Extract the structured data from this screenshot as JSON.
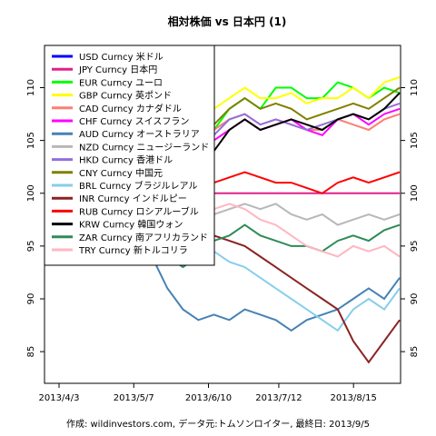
{
  "chart_data": {
    "type": "line",
    "title": "相対株価 vs 日本円 (1)",
    "footer": "作成: wildinvestors.com, データ元:トムソンロイター, 最終日: 2013/9/5",
    "xlabel": "",
    "ylabel": "",
    "x_ticks": [
      "2013/4/3",
      "2013/5/7",
      "2013/6/10",
      "2013/7/12",
      "2013/8/15"
    ],
    "x_tick_days": [
      0,
      34,
      68,
      100,
      134
    ],
    "x_end_day": 155,
    "ylim": [
      82,
      114
    ],
    "y_ticks": [
      85,
      90,
      95,
      100,
      105,
      110
    ],
    "legend_position": "top-left",
    "series": [
      {
        "name": "USD Curncy 米ドル",
        "color": "#0000ff",
        "values": []
      },
      {
        "name": "JPY Curncy 日本円",
        "color": "#e0218a",
        "values": [
          100,
          100
        ]
      },
      {
        "name": "EUR Curncy ユーロ",
        "color": "#00ff00",
        "values": [
          100,
          103,
          106,
          109,
          111,
          109,
          107,
          103.5,
          102,
          104,
          106,
          108,
          109,
          108,
          110,
          110,
          109,
          109,
          110.5,
          110,
          109,
          110,
          109.5
        ]
      },
      {
        "name": "GBP Curncy 英ポンド",
        "color": "#ffff00",
        "values": [
          100,
          103,
          107,
          110,
          112,
          110,
          108,
          104,
          103,
          106,
          108,
          109,
          110,
          109,
          109,
          109.5,
          108.5,
          109,
          109,
          110,
          109,
          110.5,
          111
        ]
      },
      {
        "name": "CAD Curncy カナダドル",
        "color": "#fa8072",
        "values": [
          100,
          102,
          105,
          108,
          110,
          108,
          105,
          103,
          102,
          104,
          106,
          107,
          107.5,
          106.5,
          107,
          106.5,
          106,
          106,
          107,
          106.5,
          106,
          107,
          107.5
        ]
      },
      {
        "name": "CHF Curncy スイスフラン",
        "color": "#ff00ff",
        "values": [
          100,
          102,
          105,
          107,
          109,
          107,
          105,
          103,
          103,
          104,
          105,
          106,
          107,
          106,
          106.5,
          107,
          106,
          105.5,
          107,
          107.5,
          106.5,
          107.5,
          108
        ]
      },
      {
        "name": "AUD Curncy オーストラリア",
        "color": "#4682b4",
        "values": [
          100,
          102,
          104,
          103,
          100,
          97,
          94,
          91,
          89,
          88,
          88.5,
          88,
          89,
          88.5,
          88,
          87,
          88,
          88.5,
          89,
          90,
          91,
          90,
          92
        ]
      },
      {
        "name": "NZD Curncy ニュージーランド",
        "color": "#b8b8b8",
        "values": [
          100,
          102,
          104,
          105,
          103,
          101,
          99,
          97,
          96,
          97,
          98,
          98.5,
          99,
          98.5,
          99,
          98,
          97.5,
          98,
          97,
          97.5,
          98,
          97.5,
          98
        ]
      },
      {
        "name": "HKD Curncy 香港ドル",
        "color": "#9370db",
        "values": [
          100,
          103,
          106,
          108,
          110,
          108,
          105,
          103,
          102,
          104,
          105.5,
          107,
          107.5,
          106.5,
          107,
          106.5,
          106,
          106.5,
          107,
          107.5,
          107,
          108,
          108.5
        ]
      },
      {
        "name": "CNY Curncy 中国元",
        "color": "#808000",
        "values": [
          100,
          103,
          106,
          109,
          111,
          109,
          106,
          103.5,
          103,
          105,
          106.5,
          108,
          109,
          108,
          108.5,
          108,
          107,
          107.5,
          108,
          108.5,
          108,
          109,
          110
        ]
      },
      {
        "name": "BRL Curncy ブラジルレアル",
        "color": "#87ceeb",
        "values": [
          100,
          102,
          104,
          105,
          103,
          100,
          98,
          96,
          95,
          95.5,
          94.5,
          93.5,
          93,
          92,
          91,
          90,
          89,
          88,
          87,
          89,
          90,
          89,
          91
        ]
      },
      {
        "name": "INR Curncy インドルピー",
        "color": "#8b2323",
        "values": [
          100,
          102,
          105,
          106,
          104,
          102,
          99,
          97,
          96,
          97,
          96,
          95.5,
          95,
          94,
          93,
          92,
          91,
          90,
          89,
          86,
          84,
          86,
          88
        ]
      },
      {
        "name": "RUB Curncy ロシアルーブル",
        "color": "#ff0000",
        "values": [
          100,
          102,
          104,
          105,
          104,
          103,
          101,
          99,
          99,
          100,
          101,
          101.5,
          102,
          101.5,
          101,
          101,
          100.5,
          100,
          101,
          101.5,
          101,
          101.5,
          102
        ]
      },
      {
        "name": "KRW Curncy 韓国ウォン",
        "color": "#000000",
        "values": [
          100,
          102,
          104,
          106,
          108,
          106,
          103,
          101,
          100.5,
          102,
          104,
          106,
          107,
          106,
          106.5,
          107,
          106.5,
          106,
          107,
          107.5,
          107,
          108,
          109.5
        ]
      },
      {
        "name": "ZAR Curncy 南アフリカランド",
        "color": "#2e8b57",
        "values": [
          100,
          101,
          102,
          101,
          99,
          97,
          95,
          94,
          93,
          94,
          95.5,
          96,
          97,
          96,
          95.5,
          95,
          95,
          94.5,
          95.5,
          96,
          95.5,
          96.5,
          97
        ]
      },
      {
        "name": "TRY Curncy 新トルコリラ",
        "color": "#ffb6c1",
        "values": [
          100,
          101,
          103,
          104,
          102,
          100,
          98,
          97,
          97,
          98,
          98.5,
          99,
          98.5,
          97.5,
          97,
          96,
          95,
          94.5,
          94,
          95,
          94.5,
          95,
          94
        ]
      }
    ]
  }
}
